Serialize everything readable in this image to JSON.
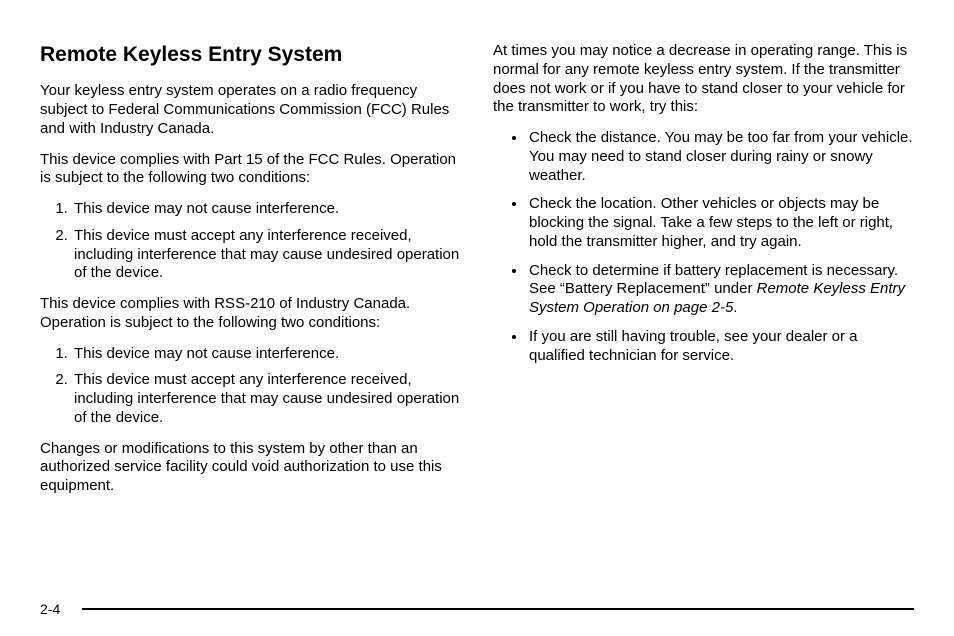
{
  "heading": "Remote Keyless Entry System",
  "left": {
    "p1": "Your keyless entry system operates on a radio frequency subject to Federal Communications Commission (FCC) Rules and with Industry Canada.",
    "p2": "This device complies with Part 15 of the FCC Rules. Operation is subject to the following two conditions:",
    "list1": {
      "i1": "This device may not cause interference.",
      "i2": "This device must accept any interference received, including interference that may cause undesired operation of the device."
    },
    "p3": "This device complies with RSS-210 of Industry Canada. Operation is subject to the following two conditions:",
    "list2": {
      "i1": "This device may not cause interference.",
      "i2": "This device must accept any interference received, including interference that may cause undesired operation of the device."
    },
    "p4": "Changes or modifications to this system by other than an authorized service facility could void authorization to use this equipment."
  },
  "right": {
    "p1": "At times you may notice a decrease in operating range. This is normal for any remote keyless entry system. If the transmitter does not work or if you have to stand closer to your vehicle for the transmitter to work, try this:",
    "b1": "Check the distance. You may be too far from your vehicle. You may need to stand closer during rainy or snowy weather.",
    "b2": "Check the location. Other vehicles or objects may be blocking the signal. Take a few steps to the left or right, hold the transmitter higher, and try again.",
    "b3a": "Check to determine if battery replacement is necessary. See “Battery Replacement” under ",
    "b3b": "Remote Keyless Entry System Operation on page 2-5",
    "b3c": ".",
    "b4": "If you are still having trouble, see your dealer or a qualified technician for service."
  },
  "pageNumber": "2-4",
  "style": {
    "textColor": "#000000",
    "bgColor": "#ffffff",
    "headingFontSize": 21,
    "bodyFontSize": 15,
    "lineHeight": 1.25,
    "ruleColor": "#000000",
    "ruleWidth": 2
  }
}
